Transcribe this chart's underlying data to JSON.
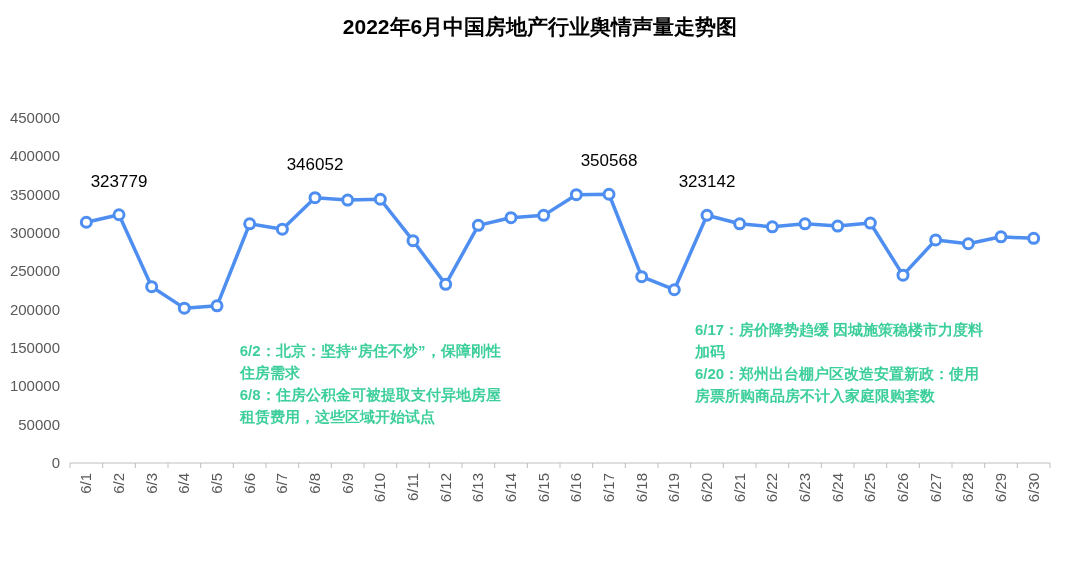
{
  "chart_data": {
    "type": "line",
    "title": "2022年6月中国房地产行业舆情声量走势图",
    "categories": [
      "6/1",
      "6/2",
      "6/3",
      "6/4",
      "6/5",
      "6/6",
      "6/7",
      "6/8",
      "6/9",
      "6/10",
      "6/11",
      "6/12",
      "6/13",
      "6/14",
      "6/15",
      "6/16",
      "6/17",
      "6/18",
      "6/19",
      "6/20",
      "6/21",
      "6/22",
      "6/23",
      "6/24",
      "6/25",
      "6/26",
      "6/27",
      "6/28",
      "6/29",
      "6/30"
    ],
    "series": [
      {
        "color": "#4e8ef0",
        "marker": "circle",
        "values": [
          314000,
          323779,
          230000,
          202000,
          205000,
          312000,
          305000,
          346052,
          343000,
          344000,
          290000,
          233000,
          310000,
          320000,
          323000,
          350000,
          350568,
          243000,
          226000,
          323142,
          312000,
          308000,
          312000,
          309000,
          313000,
          245000,
          291000,
          286000,
          295000,
          293000
        ],
        "value_labels": [
          null,
          "323779",
          null,
          null,
          null,
          null,
          null,
          "346052",
          null,
          null,
          null,
          null,
          null,
          null,
          null,
          null,
          "350568",
          null,
          null,
          "323142",
          null,
          null,
          null,
          null,
          null,
          null,
          null,
          null,
          null,
          null
        ]
      }
    ],
    "ylim": [
      0,
      450000
    ],
    "yticks": [
      0,
      50000,
      100000,
      150000,
      200000,
      250000,
      300000,
      350000,
      400000,
      450000
    ],
    "grid": false,
    "annotations": [
      "6/2：北京：坚持“房住不炒”，保障刚性住房需求",
      "6/8：住房公积金可被提取支付异地房屋租赁费用，这些区域开始试点",
      "6/17：房价降势趋缓 因城施策稳楼市力度料加码",
      "6/20：郑州出台棚户区改造安置新政：使用房票所购商品房不计入家庭限购套数"
    ]
  }
}
